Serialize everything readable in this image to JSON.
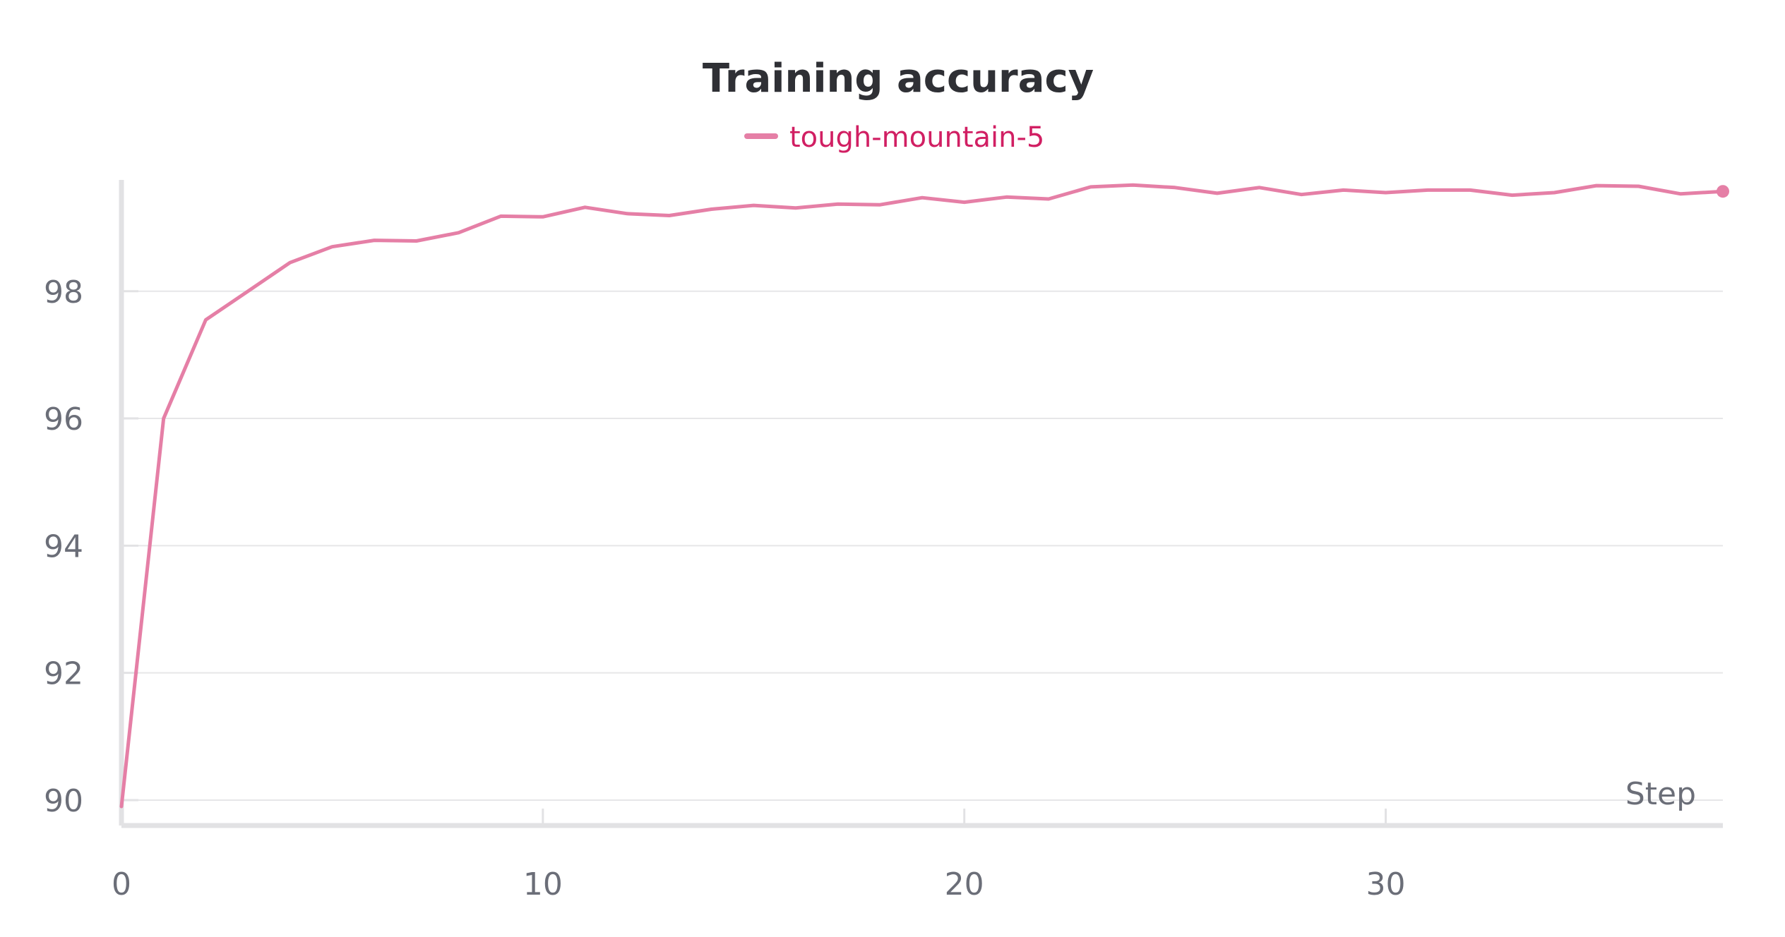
{
  "chart_data": {
    "type": "line",
    "title": "Training accuracy",
    "xlabel": "Step",
    "ylabel": "",
    "xlim": [
      0,
      38
    ],
    "ylim": [
      89.6,
      99.75
    ],
    "x_ticks": [
      0,
      10,
      20,
      30
    ],
    "y_ticks": [
      90,
      92,
      94,
      96,
      98
    ],
    "grid": true,
    "legend": "top-center",
    "series": [
      {
        "name": "tough-mountain-5",
        "color": "#e57fa6",
        "x": [
          0,
          1,
          2,
          3,
          4,
          5,
          6,
          7,
          8,
          9,
          10,
          11,
          12,
          13,
          14,
          15,
          16,
          17,
          18,
          19,
          20,
          21,
          22,
          23,
          24,
          25,
          26,
          27,
          28,
          29,
          30,
          31,
          32,
          33,
          34,
          35,
          36,
          37,
          38
        ],
        "y": [
          89.9,
          96.0,
          97.55,
          98.0,
          98.45,
          98.7,
          98.8,
          98.79,
          98.92,
          99.18,
          99.17,
          99.32,
          99.22,
          99.19,
          99.29,
          99.35,
          99.31,
          99.37,
          99.36,
          99.47,
          99.4,
          99.48,
          99.45,
          99.64,
          99.67,
          99.63,
          99.54,
          99.63,
          99.52,
          99.59,
          99.55,
          99.59,
          99.59,
          99.51,
          99.55,
          99.66,
          99.65,
          99.53,
          99.57
        ]
      }
    ]
  }
}
